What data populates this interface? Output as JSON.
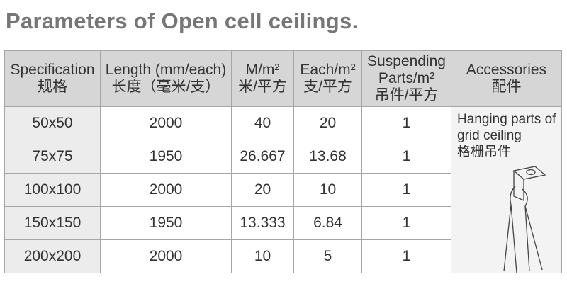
{
  "title": "Parameters of Open cell ceilings.",
  "table": {
    "header": [
      [
        "Specification",
        "规格"
      ],
      [
        "Length (mm/each)",
        "长度（毫米/支）"
      ],
      [
        "M/m²",
        "米/平方"
      ],
      [
        "Each/m²",
        "支/平方"
      ],
      [
        "Suspending",
        "Parts/m²",
        "吊件/平方"
      ],
      [
        "Accessories",
        "配件"
      ]
    ],
    "rows": [
      [
        "50x50",
        "2000",
        "40",
        "20",
        "1"
      ],
      [
        "75x75",
        "1950",
        "26.667",
        "13.68",
        "1"
      ],
      [
        "100x100",
        "2000",
        "20",
        "10",
        "1"
      ],
      [
        "150x150",
        "1950",
        "13.333",
        "6.84",
        "1"
      ],
      [
        "200x200",
        "2000",
        "10",
        "5",
        "1"
      ]
    ],
    "accessory": [
      "Hanging parts of",
      "grid ceiling",
      "格栅吊件"
    ]
  }
}
